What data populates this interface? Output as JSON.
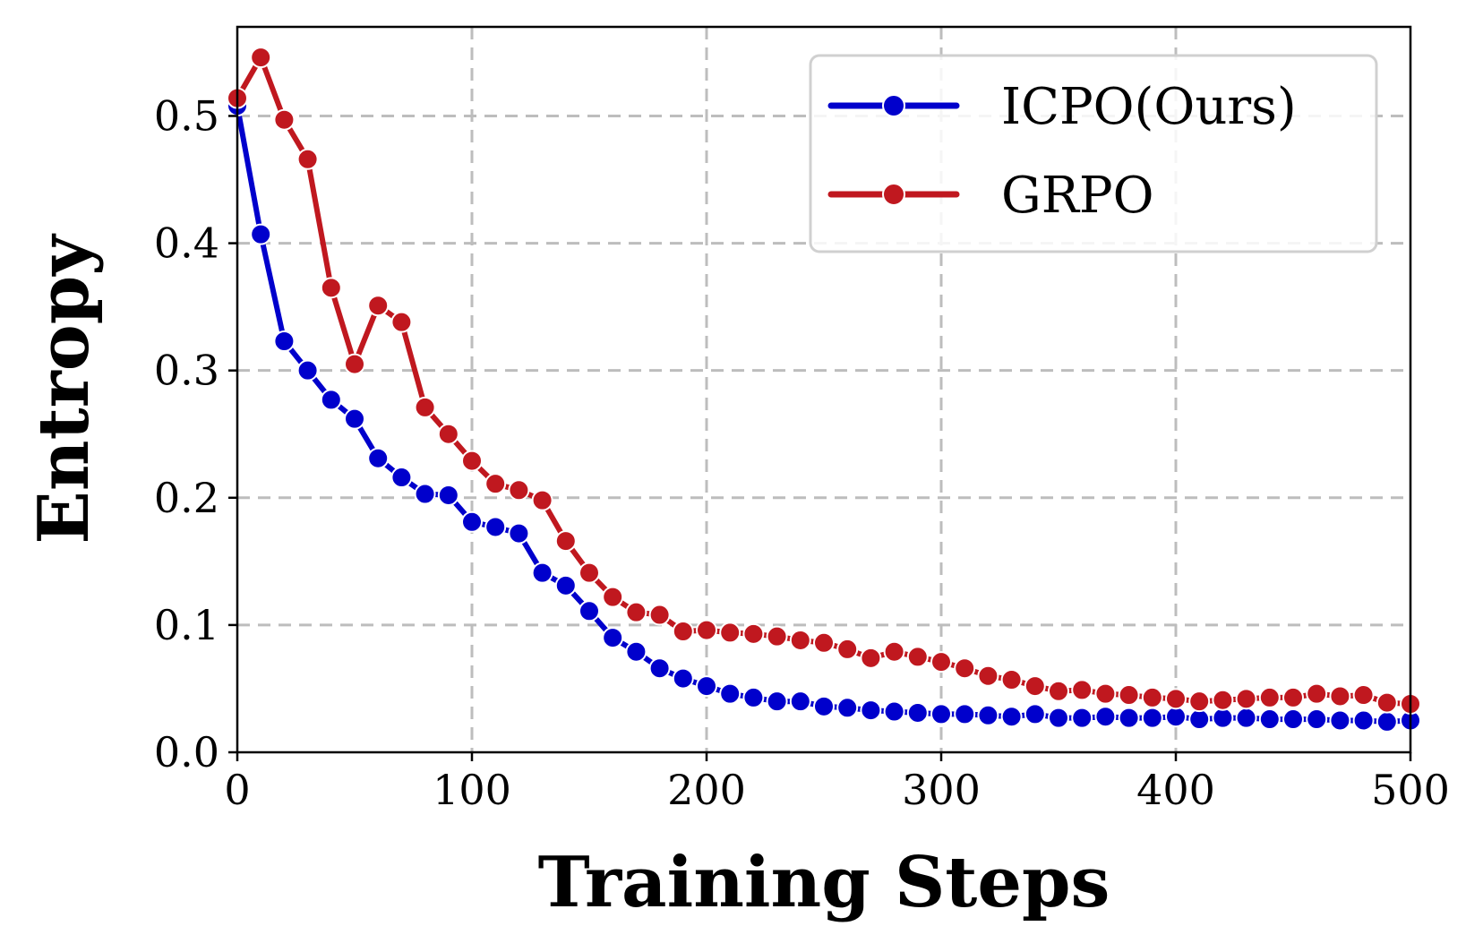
{
  "chart_data": {
    "type": "line",
    "title": "",
    "xlabel": "Training Steps",
    "ylabel": "Entropy",
    "xlim": [
      0,
      500
    ],
    "ylim": [
      0,
      0.57
    ],
    "xticks": [
      0,
      100,
      200,
      300,
      400,
      500
    ],
    "xtick_labels": [
      "0",
      "100",
      "200",
      "300",
      "400",
      "500"
    ],
    "yticks": [
      0,
      0.1,
      0.2,
      0.3,
      0.4,
      0.5
    ],
    "ytick_labels": [
      "0.0",
      "0.1",
      "0.2",
      "0.3",
      "0.4",
      "0.5"
    ],
    "grid": true,
    "legend_position": "top-right",
    "x": [
      0,
      10,
      20,
      30,
      40,
      50,
      60,
      70,
      80,
      90,
      100,
      110,
      120,
      130,
      140,
      150,
      160,
      170,
      180,
      190,
      200,
      210,
      220,
      230,
      240,
      250,
      260,
      270,
      280,
      290,
      300,
      310,
      320,
      330,
      340,
      350,
      360,
      370,
      380,
      390,
      400,
      410,
      420,
      430,
      440,
      450,
      460,
      470,
      480,
      490,
      500
    ],
    "series": [
      {
        "name": "ICPO(Ours)",
        "color": "#0000cc",
        "values": [
          0.508,
          0.407,
          0.323,
          0.3,
          0.277,
          0.262,
          0.231,
          0.216,
          0.203,
          0.202,
          0.181,
          0.177,
          0.172,
          0.141,
          0.131,
          0.111,
          0.09,
          0.079,
          0.066,
          0.058,
          0.052,
          0.046,
          0.043,
          0.04,
          0.04,
          0.036,
          0.035,
          0.033,
          0.032,
          0.031,
          0.03,
          0.03,
          0.029,
          0.028,
          0.03,
          0.027,
          0.027,
          0.028,
          0.027,
          0.027,
          0.028,
          0.026,
          0.027,
          0.027,
          0.026,
          0.026,
          0.026,
          0.025,
          0.025,
          0.024,
          0.025
        ]
      },
      {
        "name": "GRPO",
        "color": "#c0181f",
        "values": [
          0.514,
          0.546,
          0.497,
          0.466,
          0.365,
          0.305,
          0.351,
          0.338,
          0.271,
          0.25,
          0.229,
          0.211,
          0.206,
          0.198,
          0.166,
          0.141,
          0.122,
          0.11,
          0.108,
          0.095,
          0.096,
          0.094,
          0.093,
          0.091,
          0.088,
          0.086,
          0.081,
          0.074,
          0.079,
          0.075,
          0.071,
          0.066,
          0.06,
          0.057,
          0.052,
          0.048,
          0.049,
          0.046,
          0.045,
          0.043,
          0.042,
          0.04,
          0.041,
          0.042,
          0.043,
          0.043,
          0.046,
          0.044,
          0.045,
          0.039,
          0.038
        ]
      }
    ]
  }
}
